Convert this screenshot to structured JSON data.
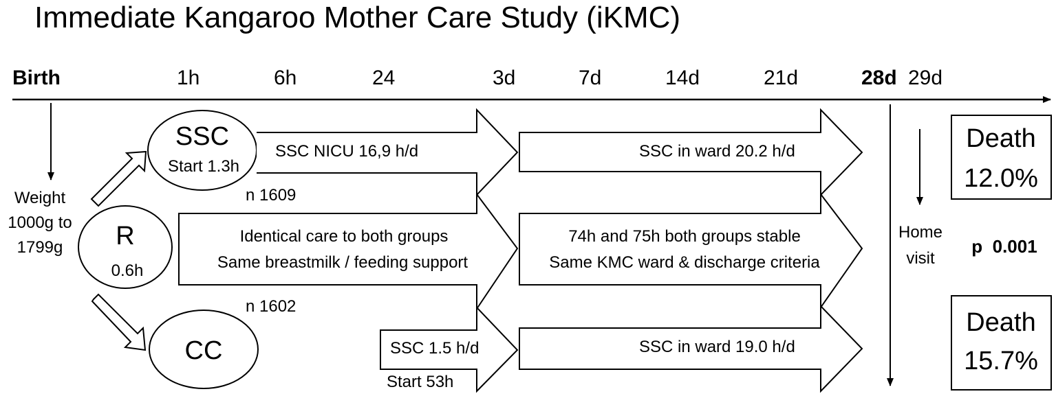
{
  "title": "Immediate Kangaroo Mother Care Study (iKMC)",
  "timeline": {
    "ticks": [
      "Birth",
      "1h",
      "6h",
      "24",
      "3d",
      "7d",
      "14d",
      "21d",
      "28d",
      "29d"
    ]
  },
  "enrollment": {
    "line1": "Weight",
    "line2": "1000g to",
    "line3": "1799g"
  },
  "randomization": {
    "label": "R",
    "time": "0.6h"
  },
  "ssc_group": {
    "label": "SSC",
    "start": "Start 1.3h",
    "n": "n 1609",
    "nicu": "SSC NICU 16,9 h/d",
    "ward": "SSC in ward 20.2 h/d"
  },
  "common_care": {
    "line1": "Identical care to both groups",
    "line2": "Same breastmilk / feeding support",
    "stable1": "74h and 75h both groups stable",
    "stable2": "Same KMC ward & discharge criteria"
  },
  "cc_group": {
    "label": "CC",
    "n": "n 1602",
    "ssc": "SSC  1.5 h/d",
    "start": "Start 53h",
    "ward": "SSC in ward 19.0 h/d"
  },
  "home_visit": {
    "line1": "Home",
    "line2": "visit"
  },
  "outcomes": {
    "ssc_death_label": "Death",
    "ssc_death_value": "12.0%",
    "cc_death_label": "Death",
    "cc_death_value": "15.7%",
    "p_value": "p  0.001"
  }
}
